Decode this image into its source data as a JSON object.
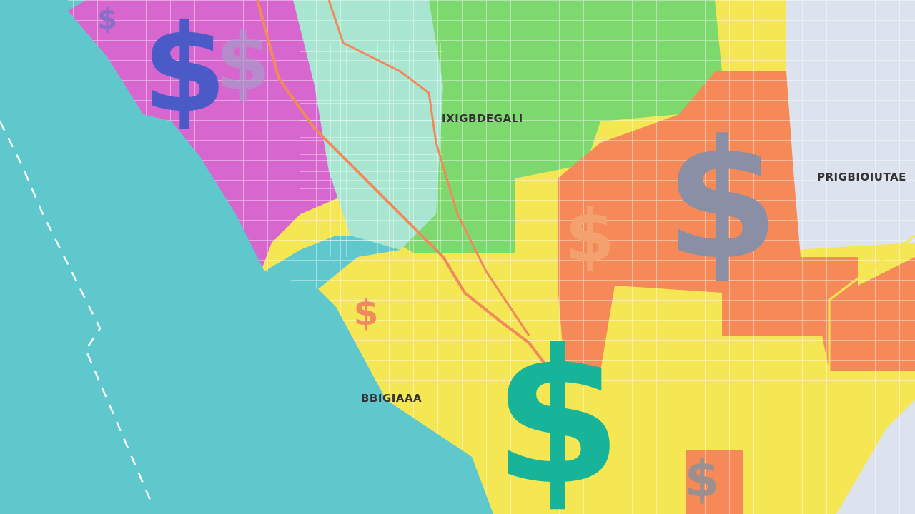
{
  "map": {
    "labels": [
      "IXIGBDEGALI",
      "PRIGBIOIUTAE",
      "BBIGIAAA"
    ],
    "symbol": "$"
  }
}
